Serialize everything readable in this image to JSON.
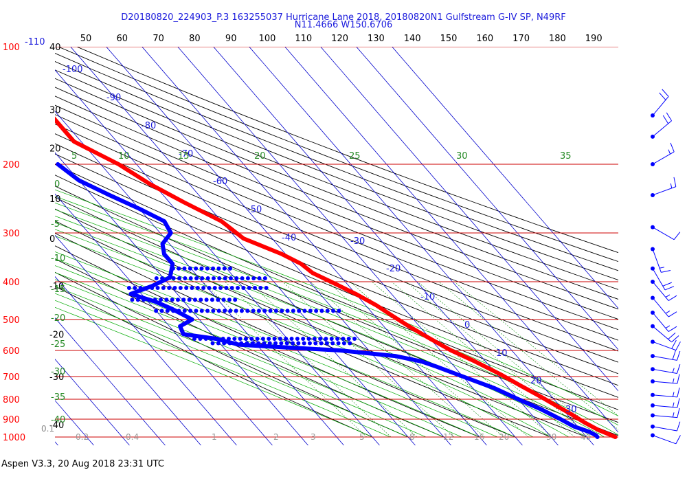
{
  "title_line1": "D20180820_224903_P.3 163255037 Hurricane Lane 2018, 20180820N1 Gulfstream G-IV SP, N49RF",
  "title_line2": "N11.4666 W150.6706",
  "footer": "Aspen V3.3, 20 Aug 2018  23:31 UTC",
  "chart_data": {
    "type": "skew-t",
    "pressure_axis_min": 100,
    "pressure_axis_max": 1000,
    "pressure_levels_labeled": [
      "100",
      "200",
      "300",
      "400",
      "500",
      "600",
      "700",
      "800",
      "900",
      "1000"
    ],
    "pressure_label_blue_top": "-110",
    "top_axis_labels": [
      "50",
      "60",
      "70",
      "80",
      "90",
      "100",
      "110",
      "120",
      "130",
      "140",
      "150",
      "160",
      "170",
      "180",
      "190"
    ],
    "left_axis_labels": [
      {
        "label": "40",
        "p": 100
      },
      {
        "label": "30",
        "p": 145
      },
      {
        "label": "20",
        "p": 182
      },
      {
        "label": "10",
        "p": 245
      },
      {
        "label": "0",
        "p": 310
      },
      {
        "label": "-10",
        "p": 410
      },
      {
        "label": "-20",
        "p": 545
      },
      {
        "label": "-30",
        "p": 700
      },
      {
        "label": "-40",
        "p": 930
      }
    ],
    "isotherm_labels": [
      "-100",
      "-90",
      "-80",
      "-70",
      "-60",
      "-50",
      "-40",
      "-30",
      "-20",
      "-10",
      "0",
      "10",
      "20",
      "30"
    ],
    "mixing_ratio_labels": [
      "0.1",
      "0.2",
      "0.4",
      "1",
      "2",
      "3",
      "5",
      "8",
      "12",
      "16",
      "20",
      "30",
      "40"
    ],
    "theta_e_labels": [
      "5",
      "10",
      "15",
      "20",
      "25",
      "30",
      "35"
    ],
    "moist_adiabat_left_labels": [
      "0",
      "-5",
      "-10",
      "-15",
      "-20",
      "-25",
      "-30",
      "-35",
      "-40"
    ],
    "temperature_profile": [
      [
        145,
        -52
      ],
      [
        175,
        -52
      ],
      [
        200,
        -45
      ],
      [
        225,
        -41
      ],
      [
        250,
        -36
      ],
      [
        280,
        -30
      ],
      [
        310,
        -28
      ],
      [
        340,
        -21
      ],
      [
        360,
        -18
      ],
      [
        380,
        -17
      ],
      [
        400,
        -14
      ],
      [
        430,
        -10
      ],
      [
        460,
        -7
      ],
      [
        490,
        -5
      ],
      [
        520,
        -3
      ],
      [
        560,
        0
      ],
      [
        600,
        3
      ],
      [
        640,
        7
      ],
      [
        690,
        11
      ],
      [
        740,
        14
      ],
      [
        790,
        17
      ],
      [
        830,
        19
      ],
      [
        870,
        21
      ],
      [
        920,
        23
      ],
      [
        960,
        25
      ],
      [
        985,
        27
      ],
      [
        1000,
        28
      ]
    ],
    "dewpoint_profile": [
      [
        200,
        -62
      ],
      [
        220,
        -60
      ],
      [
        240,
        -55
      ],
      [
        260,
        -50
      ],
      [
        280,
        -46
      ],
      [
        300,
        -47
      ],
      [
        320,
        -52
      ],
      [
        340,
        -54
      ],
      [
        360,
        -54
      ],
      [
        390,
        -58
      ],
      [
        410,
        -65
      ],
      [
        430,
        -73
      ],
      [
        450,
        -68
      ],
      [
        470,
        -65
      ],
      [
        500,
        -62
      ],
      [
        520,
        -67
      ],
      [
        545,
        -68
      ],
      [
        560,
        -60
      ],
      [
        580,
        -55
      ],
      [
        590,
        -42
      ],
      [
        600,
        -28
      ],
      [
        620,
        -14
      ],
      [
        640,
        -8
      ],
      [
        660,
        -5
      ],
      [
        700,
        0
      ],
      [
        750,
        6
      ],
      [
        800,
        10
      ],
      [
        850,
        14
      ],
      [
        900,
        17
      ],
      [
        940,
        19
      ],
      [
        970,
        22
      ],
      [
        990,
        23
      ],
      [
        1000,
        23
      ]
    ],
    "dewpoint_scatter_rows": [
      {
        "p": 370,
        "t_from": -55,
        "t_to": -38
      },
      {
        "p": 392,
        "t_from": -62,
        "t_to": -30
      },
      {
        "p": 415,
        "t_from": -72,
        "t_to": -33
      },
      {
        "p": 445,
        "t_from": -74,
        "t_to": -45
      },
      {
        "p": 475,
        "t_from": -70,
        "t_to": -18
      },
      {
        "p": 560,
        "t_from": -66,
        "t_to": -20
      },
      {
        "p": 575,
        "t_from": -62,
        "t_to": -22
      }
    ],
    "wind_barbs": [
      {
        "p": 150,
        "dir": 40,
        "spd": 20
      },
      {
        "p": 170,
        "dir": 50,
        "spd": 20
      },
      {
        "p": 200,
        "dir": 60,
        "spd": 15
      },
      {
        "p": 240,
        "dir": 70,
        "spd": 15
      },
      {
        "p": 290,
        "dir": 120,
        "spd": 10
      },
      {
        "p": 330,
        "dir": 160,
        "spd": 15
      },
      {
        "p": 370,
        "dir": 150,
        "spd": 20
      },
      {
        "p": 400,
        "dir": 140,
        "spd": 15
      },
      {
        "p": 440,
        "dir": 140,
        "spd": 15
      },
      {
        "p": 480,
        "dir": 140,
        "spd": 15
      },
      {
        "p": 520,
        "dir": 130,
        "spd": 20
      },
      {
        "p": 570,
        "dir": 110,
        "spd": 20
      },
      {
        "p": 620,
        "dir": 100,
        "spd": 20
      },
      {
        "p": 670,
        "dir": 100,
        "spd": 15
      },
      {
        "p": 720,
        "dir": 95,
        "spd": 15
      },
      {
        "p": 780,
        "dir": 95,
        "spd": 15
      },
      {
        "p": 830,
        "dir": 95,
        "spd": 15
      },
      {
        "p": 880,
        "dir": 95,
        "spd": 15
      },
      {
        "p": 940,
        "dir": 100,
        "spd": 10
      },
      {
        "p": 990,
        "dir": 110,
        "spd": 10
      }
    ],
    "colors": {
      "temperature": "#ff0000",
      "dewpoint": "#0000ff",
      "isobar": "#cc0000",
      "isotherm": "#0000cc",
      "dry_adiabat": "#000000",
      "mixing_ratio": "#008800",
      "moist_adiabat": "#00aa00",
      "title": "#1a1adc"
    }
  }
}
